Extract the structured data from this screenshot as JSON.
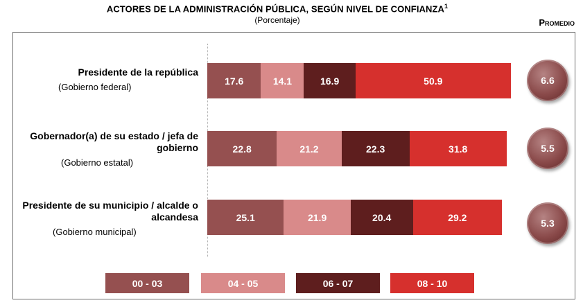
{
  "chart_data": {
    "type": "bar",
    "orientation": "horizontal-stacked",
    "title": "ACTORES DE LA ADMINISTRACIÓN PÚBLICA, SEGÚN NIVEL DE CONFIANZA",
    "title_sup": "1",
    "subtitle": "(Porcentaje)",
    "promedio_header": "Promedio",
    "categories": [
      {
        "label": "Presidente de la república",
        "sub": "(Gobierno federal)"
      },
      {
        "label": "Gobernador(a) de su estado / jefa de gobierno",
        "sub": "(Gobierno estatal)"
      },
      {
        "label": "Presidente de su municipio / alcalde o alcandesa",
        "sub": "(Gobierno municipal)"
      }
    ],
    "series": [
      {
        "name": "00 - 03",
        "color": "#955050",
        "values": [
          17.6,
          22.8,
          25.1
        ]
      },
      {
        "name": "04 - 05",
        "color": "#d98a8a",
        "values": [
          14.1,
          21.2,
          21.9
        ]
      },
      {
        "name": "06 - 07",
        "color": "#5e1e1e",
        "values": [
          16.9,
          22.3,
          20.4
        ]
      },
      {
        "name": "08 - 10",
        "color": "#d6302d",
        "values": [
          50.9,
          31.8,
          29.2
        ]
      }
    ],
    "value_labels": [
      [
        "17.6",
        "14.1",
        "16.9",
        "50.9"
      ],
      [
        "22.8",
        "21.2",
        "22.3",
        "31.8"
      ],
      [
        "25.1",
        "21.9",
        "20.4",
        "29.2"
      ]
    ],
    "promedio": [
      "6.6",
      "5.5",
      "5.3"
    ],
    "xlim": [
      0,
      100
    ]
  }
}
